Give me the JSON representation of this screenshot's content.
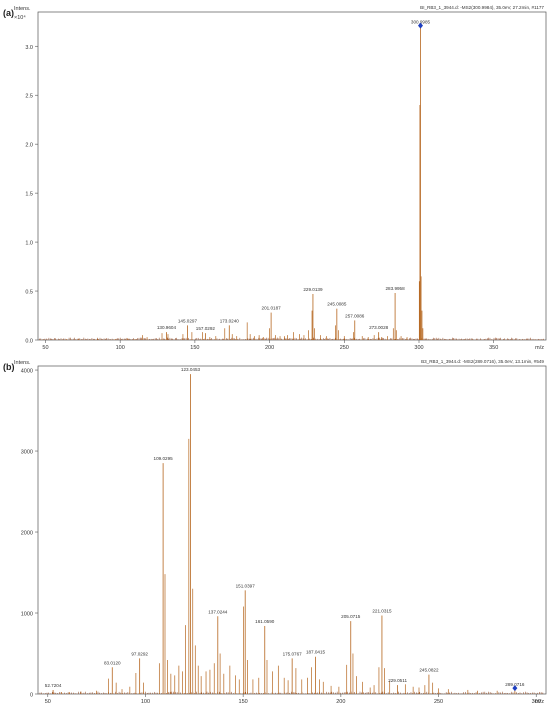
{
  "panel_labels": [
    "(a)",
    "(b)"
  ],
  "chart_data": [
    {
      "type": "bar",
      "title": "",
      "header": "BI_RB3_1_3944.d: -MS2(300.9984), 35.0eV, 27.2min, #1177",
      "ylabel": "Intens.",
      "y_exponent_label": "×10⁴",
      "xlabel": "m/z",
      "xlim": [
        45,
        385
      ],
      "ylim": [
        0,
        3.35
      ],
      "y_ticks": [
        0,
        0.5,
        1.0,
        1.5,
        2.0,
        2.5,
        3.0
      ],
      "x_ticks": [
        50,
        100,
        150,
        200,
        250,
        300,
        350
      ],
      "precursor_marker": 300.9985,
      "labeled_peaks": [
        {
          "mz": 300.9985,
          "label": "300.9985",
          "value": 3.2
        },
        {
          "mz": 283.9958,
          "label": "283.9958",
          "value": 0.48
        },
        {
          "mz": 229.0139,
          "label": "229.0139",
          "value": 0.47
        },
        {
          "mz": 245.0085,
          "label": "245.0085",
          "value": 0.32
        },
        {
          "mz": 257.0086,
          "label": "257.0086",
          "value": 0.2
        },
        {
          "mz": 273.0028,
          "label": "273.0028",
          "value": 0.08
        },
        {
          "mz": 201.0187,
          "label": "201.0187",
          "value": 0.28
        },
        {
          "mz": 173.024,
          "label": "173.0240",
          "value": 0.15
        },
        {
          "mz": 157.0292,
          "label": "157.0292",
          "value": 0.07
        },
        {
          "mz": 145.0297,
          "label": "145.0297",
          "value": 0.15
        },
        {
          "mz": 130.9604,
          "label": "130.9604",
          "value": 0.08
        }
      ],
      "peaks": [
        [
          300.2,
          0.6
        ],
        [
          300.6,
          2.4
        ],
        [
          301.4,
          0.65
        ],
        [
          302.0,
          0.3
        ],
        [
          302.6,
          0.12
        ],
        [
          282.8,
          0.12
        ],
        [
          284.8,
          0.1
        ],
        [
          228.4,
          0.3
        ],
        [
          230.0,
          0.12
        ],
        [
          244.2,
          0.15
        ],
        [
          246.0,
          0.1
        ],
        [
          256.2,
          0.08
        ],
        [
          270,
          0.05
        ],
        [
          279,
          0.04
        ],
        [
          185,
          0.18
        ],
        [
          200,
          0.12
        ],
        [
          187,
          0.06
        ],
        [
          170,
          0.12
        ],
        [
          175,
          0.06
        ],
        [
          155,
          0.08
        ],
        [
          148,
          0.08
        ],
        [
          142,
          0.06
        ],
        [
          128,
          0.07
        ],
        [
          132,
          0.06
        ],
        [
          115,
          0.05
        ],
        [
          118,
          0.03
        ],
        [
          210,
          0.04
        ],
        [
          212,
          0.05
        ],
        [
          216,
          0.08
        ],
        [
          220,
          0.06
        ],
        [
          223,
          0.05
        ],
        [
          226,
          0.1
        ],
        [
          234,
          0.05
        ],
        [
          238,
          0.04
        ],
        [
          250,
          0.04
        ],
        [
          262,
          0.04
        ],
        [
          266,
          0.03
        ],
        [
          275,
          0.03
        ],
        [
          288,
          0.04
        ],
        [
          292,
          0.03
        ],
        [
          160,
          0.03
        ],
        [
          164,
          0.04
        ],
        [
          178,
          0.04
        ],
        [
          190,
          0.04
        ],
        [
          193,
          0.05
        ],
        [
          196,
          0.03
        ],
        [
          204,
          0.05
        ],
        [
          207,
          0.04
        ],
        [
          97,
          0.01
        ],
        [
          105,
          0.015
        ],
        [
          110,
          0.01
        ],
        [
          64,
          0.008
        ],
        [
          72,
          0.01
        ],
        [
          85,
          0.012
        ]
      ]
    },
    {
      "type": "bar",
      "title": "",
      "header": "B3_RB3_1_3944.d: -MS2(289.0716), 35.0eV, 13.1min, #549",
      "ylabel": "Intens.",
      "xlabel": "m/z",
      "xlim": [
        45,
        305
      ],
      "ylim": [
        0,
        4050
      ],
      "y_ticks": [
        0,
        1000,
        2000,
        3000,
        4000
      ],
      "x_ticks": [
        50,
        100,
        150,
        200,
        250,
        300
      ],
      "precursor_marker": 289.0716,
      "labeled_peaks": [
        {
          "mz": 123.0453,
          "label": "123.0453",
          "value": 3950
        },
        {
          "mz": 109.0295,
          "label": "109.0295",
          "value": 2850
        },
        {
          "mz": 151.0397,
          "label": "151.0397",
          "value": 1280
        },
        {
          "mz": 137.0244,
          "label": "137.0244",
          "value": 960
        },
        {
          "mz": 161.059,
          "label": "161.0590",
          "value": 840
        },
        {
          "mz": 205.0715,
          "label": "205.0715",
          "value": 900
        },
        {
          "mz": 221.0315,
          "label": "221.0315",
          "value": 970
        },
        {
          "mz": 175.0767,
          "label": "175.0767",
          "value": 440
        },
        {
          "mz": 187.0415,
          "label": "187.0415",
          "value": 460
        },
        {
          "mz": 97.0292,
          "label": "97.0292",
          "value": 440
        },
        {
          "mz": 83.012,
          "label": "83.0120",
          "value": 330
        },
        {
          "mz": 245.0822,
          "label": "245.0822",
          "value": 240
        },
        {
          "mz": 229.0511,
          "label": "229.0511",
          "value": 110
        },
        {
          "mz": 289.0716,
          "label": "289.0716",
          "value": 60
        },
        {
          "mz": 52.7204,
          "label": "52.7204",
          "value": 50
        }
      ],
      "peaks": [
        [
          122.2,
          3150
        ],
        [
          110.0,
          1480
        ],
        [
          124.2,
          1300
        ],
        [
          120.5,
          850
        ],
        [
          125.5,
          600
        ],
        [
          127,
          350
        ],
        [
          128.5,
          220
        ],
        [
          150.1,
          1080
        ],
        [
          152.2,
          420
        ],
        [
          138.2,
          500
        ],
        [
          135.2,
          380
        ],
        [
          140.1,
          250
        ],
        [
          143.2,
          350
        ],
        [
          162.2,
          420
        ],
        [
          165,
          280
        ],
        [
          168,
          350
        ],
        [
          171,
          200
        ],
        [
          177,
          320
        ],
        [
          180,
          180
        ],
        [
          185,
          330
        ],
        [
          189,
          180
        ],
        [
          191,
          150
        ],
        [
          203,
          360
        ],
        [
          206.2,
          500
        ],
        [
          208,
          220
        ],
        [
          211,
          150
        ],
        [
          219.5,
          330
        ],
        [
          222.3,
          320
        ],
        [
          225,
          160
        ],
        [
          233,
          120
        ],
        [
          243,
          110
        ],
        [
          247,
          140
        ],
        [
          250,
          70
        ],
        [
          255,
          60
        ],
        [
          265,
          50
        ],
        [
          270,
          40
        ],
        [
          280,
          40
        ],
        [
          95.1,
          260
        ],
        [
          99,
          140
        ],
        [
          107.1,
          380
        ],
        [
          111.2,
          420
        ],
        [
          113,
          250
        ],
        [
          115,
          230
        ],
        [
          117.1,
          350
        ],
        [
          119,
          280
        ],
        [
          81,
          190
        ],
        [
          85,
          140
        ],
        [
          88,
          60
        ],
        [
          92,
          90
        ],
        [
          75,
          40
        ],
        [
          67,
          30
        ],
        [
          61,
          25
        ],
        [
          57,
          25
        ],
        [
          131,
          280
        ],
        [
          133,
          300
        ],
        [
          146,
          230
        ],
        [
          148,
          180
        ],
        [
          155,
          180
        ],
        [
          158,
          200
        ],
        [
          173,
          170
        ],
        [
          183,
          200
        ],
        [
          195,
          100
        ],
        [
          199,
          90
        ],
        [
          215,
          80
        ],
        [
          217,
          110
        ],
        [
          237,
          90
        ],
        [
          240,
          80
        ]
      ]
    }
  ]
}
